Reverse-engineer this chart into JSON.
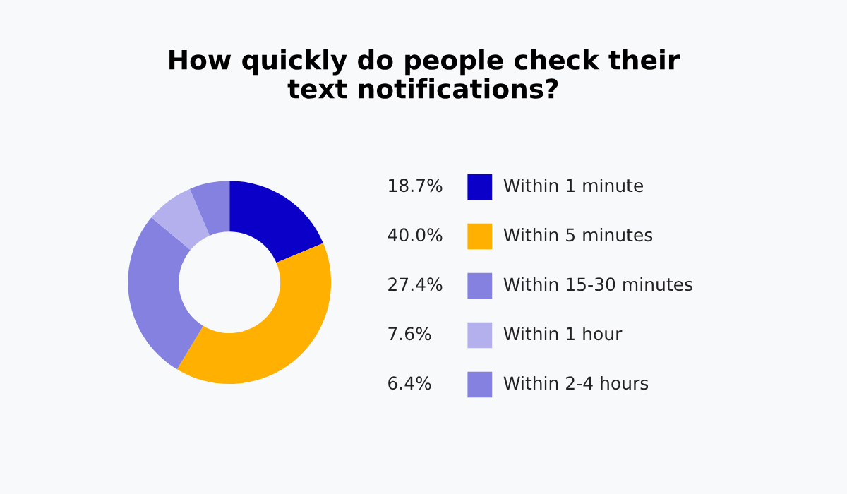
{
  "chart_data": {
    "type": "donut",
    "title": "How quickly do people check their\ntext notifications?",
    "categories": [
      "Within 1 minute",
      "Within 5 minutes",
      "Within 15-30 minutes",
      "Within 1 hour",
      "Within 2-4 hours"
    ],
    "values": [
      18.7,
      40.0,
      27.4,
      7.6,
      6.4
    ],
    "value_labels": [
      "18.7%",
      "40.0%",
      "27.4%",
      "7.6%",
      "6.4%"
    ],
    "colors": [
      "#0a00c8",
      "#ffb000",
      "#8481e0",
      "#b4b0ee",
      "#8481e0"
    ],
    "legend": "right"
  }
}
